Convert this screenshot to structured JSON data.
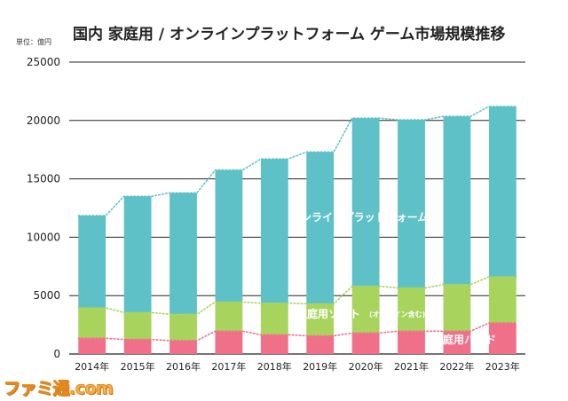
{
  "chart_data": {
    "type": "bar",
    "stacked": true,
    "title": "国内 家庭用 / オンラインプラットフォーム ゲーム市場規模推移",
    "unit_label": "単位：億円",
    "categories": [
      "2014年",
      "2015年",
      "2016年",
      "2017年",
      "2018年",
      "2019年",
      "2020年",
      "2021年",
      "2022年",
      "2023年"
    ],
    "ylim": [
      0,
      25000
    ],
    "yticks": [
      0,
      5000,
      10000,
      15000,
      20000,
      25000
    ],
    "grid": true,
    "series": [
      {
        "name": "家庭用ハード",
        "color": "#f0708a",
        "values": [
          1350,
          1250,
          1150,
          1950,
          1650,
          1550,
          1800,
          1950,
          1950,
          2650
        ]
      },
      {
        "name": "家庭用ソフト",
        "note": "(オンライン含む)",
        "color": "#a8d45e",
        "values": [
          2600,
          2300,
          2250,
          2500,
          2700,
          2750,
          4000,
          3700,
          4000,
          3950
        ]
      },
      {
        "name": "オンラインプラットフォーム",
        "color": "#5ec1c8",
        "values": [
          7900,
          9950,
          10400,
          11300,
          12350,
          13000,
          14400,
          14400,
          14400,
          14600
        ]
      }
    ]
  },
  "watermark": "ファミ通.com"
}
